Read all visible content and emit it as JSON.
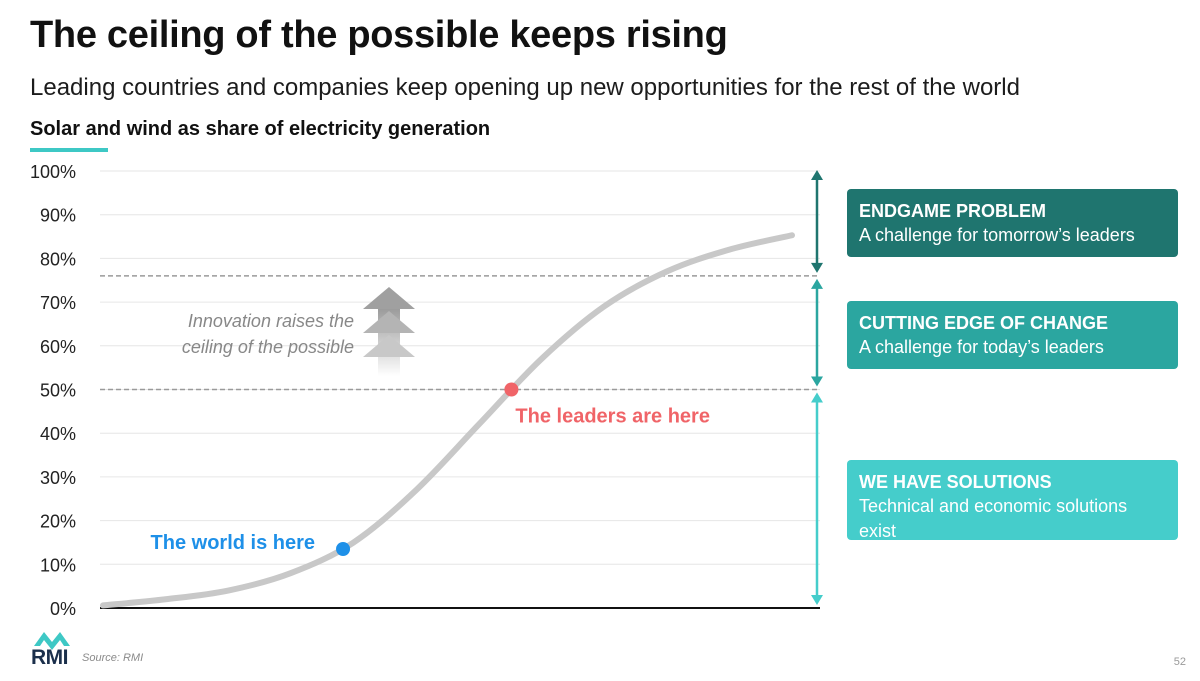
{
  "header": {
    "title": "The ceiling of the possible keeps rising",
    "subtitle": "Leading countries and companies keep opening up new opportunities for the rest of the world",
    "chart_title": "Solar and wind as share of electricity generation"
  },
  "chart_data": {
    "type": "line",
    "title": "Solar and wind as share of electricity generation",
    "xlabel": "",
    "ylabel": "",
    "ylim": [
      0,
      100
    ],
    "y_ticks": [
      "0%",
      "10%",
      "20%",
      "30%",
      "40%",
      "50%",
      "60%",
      "70%",
      "80%",
      "90%",
      "100%"
    ],
    "y_tick_values": [
      0,
      10,
      20,
      30,
      40,
      50,
      60,
      70,
      80,
      90,
      100
    ],
    "grid": true,
    "series": [
      {
        "values": [
          0.6,
          2,
          4,
          8,
          15,
          27,
          42,
          57,
          69,
          77,
          82,
          85.3
        ]
      }
    ],
    "reference_lines": [
      50,
      76
    ],
    "points": [
      {
        "label": "The world is here",
        "y": 13.5,
        "color": "#1e90e8"
      },
      {
        "label": "The leaders are here",
        "y": 50,
        "color": "#f06468"
      }
    ],
    "annotation": {
      "line1": "Innovation raises the",
      "line2": "ceiling of the possible"
    },
    "colors": {
      "curve": "#c8c8c8",
      "grid": "#e6e6e6",
      "reference": "#9a9a9a",
      "arrow_endgame": "#1f756f",
      "arrow_cutting": "#2ba6a0",
      "arrow_solutions": "#45cdcb"
    }
  },
  "zones": [
    {
      "title": "ENDGAME PROBLEM",
      "subtitle": "A challenge for tomorrow’s leaders",
      "color": "#1f756f"
    },
    {
      "title": "CUTTING EDGE OF CHANGE",
      "subtitle": "A challenge for today’s leaders",
      "color": "#2ba6a0"
    },
    {
      "title": "WE HAVE SOLUTIONS",
      "subtitle": "Technical and economic solutions exist",
      "color": "#45cdcb"
    }
  ],
  "footer": {
    "logo_text": "RMI",
    "source": "Source: RMI",
    "page_number": "52"
  }
}
